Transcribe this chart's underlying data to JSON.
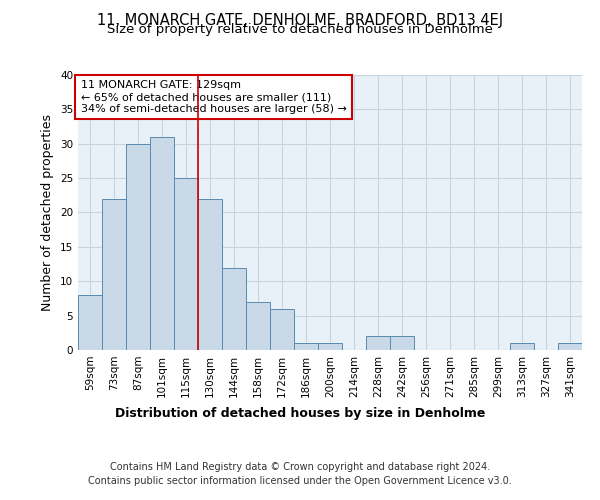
{
  "title": "11, MONARCH GATE, DENHOLME, BRADFORD, BD13 4EJ",
  "subtitle": "Size of property relative to detached houses in Denholme",
  "xlabel": "Distribution of detached houses by size in Denholme",
  "ylabel": "Number of detached properties",
  "categories": [
    "59sqm",
    "73sqm",
    "87sqm",
    "101sqm",
    "115sqm",
    "130sqm",
    "144sqm",
    "158sqm",
    "172sqm",
    "186sqm",
    "200sqm",
    "214sqm",
    "228sqm",
    "242sqm",
    "256sqm",
    "271sqm",
    "285sqm",
    "299sqm",
    "313sqm",
    "327sqm",
    "341sqm"
  ],
  "values": [
    8,
    22,
    30,
    31,
    25,
    22,
    12,
    7,
    6,
    1,
    1,
    0,
    2,
    2,
    0,
    0,
    0,
    0,
    1,
    0,
    1
  ],
  "bar_color": "#c9d9e8",
  "bar_edge_color": "#5a8ab0",
  "vline_x": 4.5,
  "vline_color": "#cc0000",
  "annotation_text": "11 MONARCH GATE: 129sqm\n← 65% of detached houses are smaller (111)\n34% of semi-detached houses are larger (58) →",
  "annotation_box_color": "#ffffff",
  "annotation_box_edge": "#cc0000",
  "ylim": [
    0,
    40
  ],
  "yticks": [
    0,
    5,
    10,
    15,
    20,
    25,
    30,
    35,
    40
  ],
  "grid_color": "#c8d4e0",
  "background_color": "#e8f0f8",
  "footer_line1": "Contains HM Land Registry data © Crown copyright and database right 2024.",
  "footer_line2": "Contains public sector information licensed under the Open Government Licence v3.0.",
  "title_fontsize": 10.5,
  "subtitle_fontsize": 9.5,
  "axis_label_fontsize": 9,
  "tick_fontsize": 7.5,
  "annotation_fontsize": 8,
  "footer_fontsize": 7
}
